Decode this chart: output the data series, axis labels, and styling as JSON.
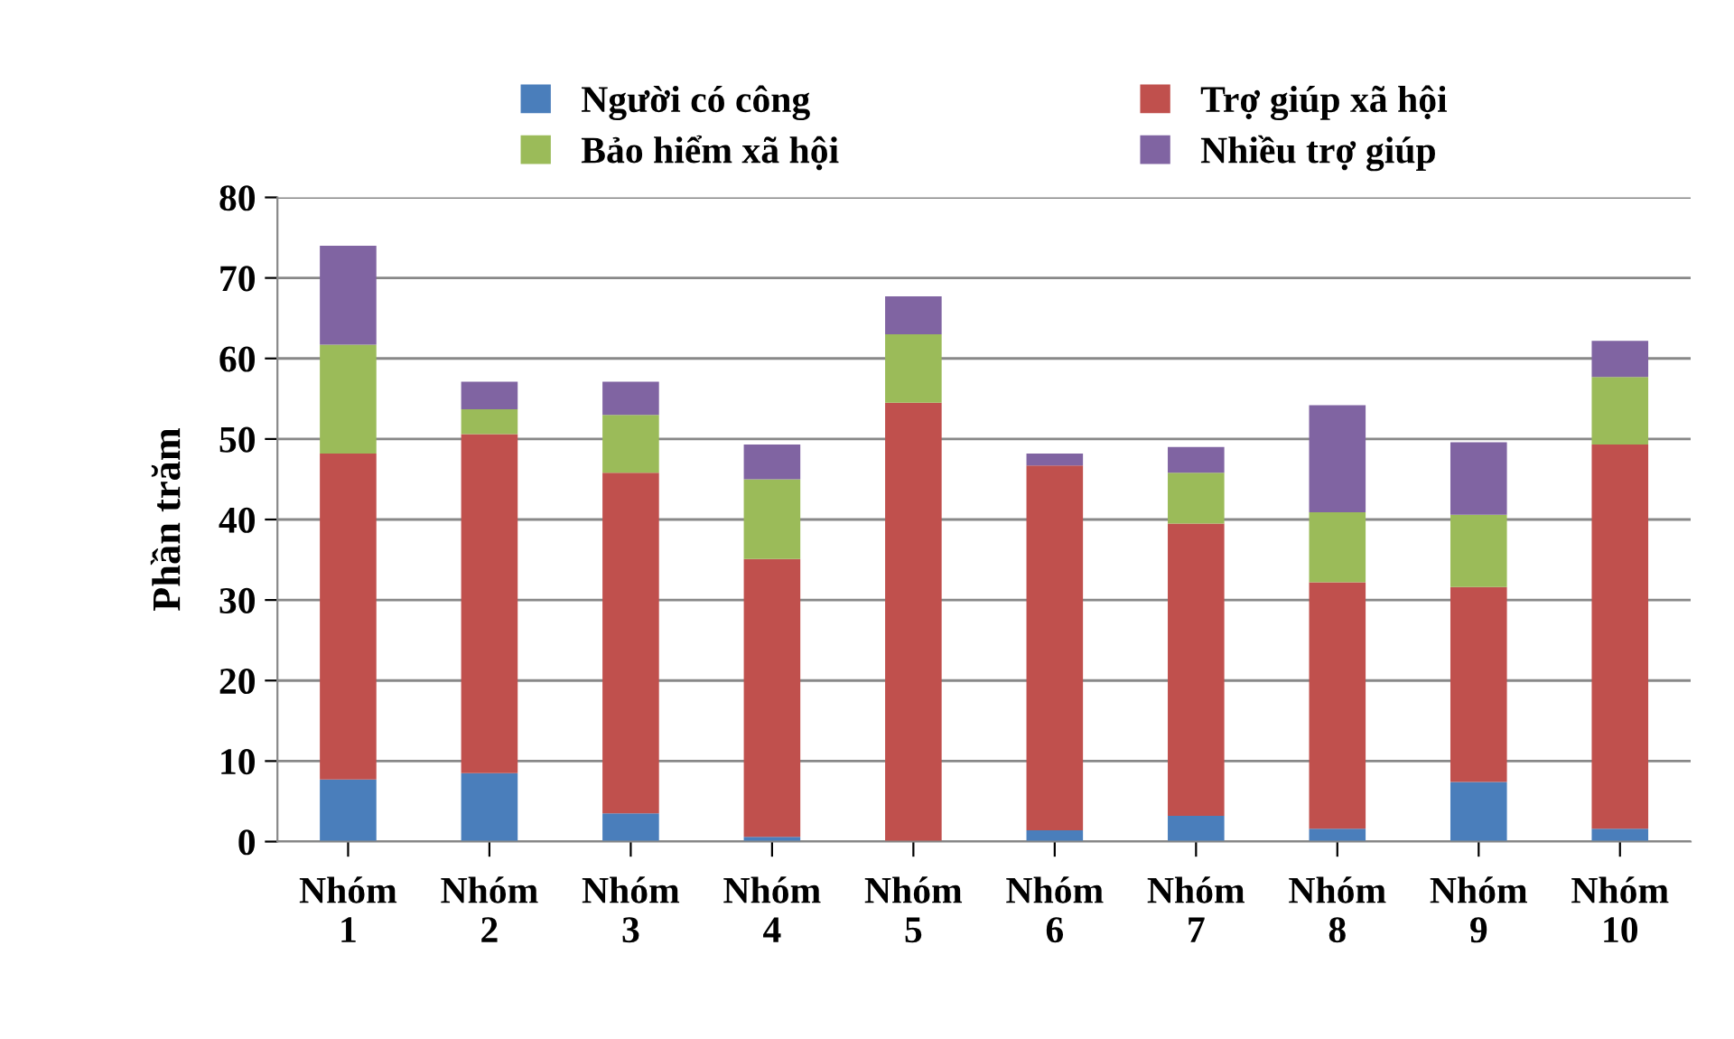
{
  "chart_data": {
    "type": "bar",
    "stacked": true,
    "ylabel": "Phần trăm",
    "categories": [
      "Nhóm\n1",
      "Nhóm\n2",
      "Nhóm\n3",
      "Nhóm\n4",
      "Nhóm\n5",
      "Nhóm\n6",
      "Nhóm\n7",
      "Nhóm\n8",
      "Nhóm\n9",
      "Nhóm\n10"
    ],
    "series": [
      {
        "name": "Người có công",
        "color": "#4a7ebb",
        "values": [
          7.7,
          8.5,
          3.5,
          0.6,
          0,
          1.4,
          3.2,
          1.6,
          7.4,
          1.6
        ]
      },
      {
        "name": "Trợ giúp xã hội",
        "color": "#c0504d",
        "values": [
          40.5,
          42.1,
          42.3,
          34.5,
          54.5,
          45.3,
          36.3,
          30.6,
          24.2,
          47.7
        ]
      },
      {
        "name": "Bảo hiểm xã hội",
        "color": "#9bbb59",
        "values": [
          13.5,
          3.1,
          7.2,
          9.9,
          8.5,
          0,
          6.3,
          8.7,
          9.0,
          8.4
        ]
      },
      {
        "name": "Nhiều trợ giúp",
        "color": "#8064a2",
        "values": [
          12.3,
          3.4,
          4.1,
          4.3,
          4.7,
          1.5,
          3.2,
          13.3,
          9.0,
          4.5
        ]
      }
    ],
    "ylim": [
      0,
      80
    ],
    "yticks": [
      0,
      10,
      20,
      30,
      40,
      50,
      60,
      70,
      80
    ],
    "grid": "y",
    "legend": "top"
  }
}
